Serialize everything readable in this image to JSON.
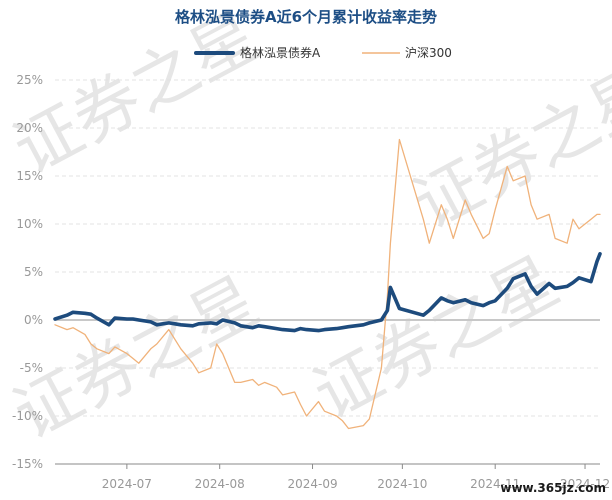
{
  "title": "格林泓景债券A近6个月累计收益率走势",
  "watermark_text": "证券之星",
  "site_label": "www.365jz.com",
  "colors": {
    "fund": "#1d4b7d",
    "index": "#f0b27a",
    "grid": "#e3e3e3",
    "zero": "#c8c8c8",
    "axis": "#8a8a8a"
  },
  "chart_data": {
    "type": "line",
    "title": "格林泓景债券A近6个月累计收益率走势",
    "xlabel": "",
    "ylabel": "",
    "y_unit": "%",
    "ylim": [
      -15,
      25
    ],
    "ytick_values": [
      -15,
      -10,
      -5,
      0,
      5,
      10,
      15,
      20,
      25
    ],
    "ytick_labels": [
      "-15%",
      "-10%",
      "-5%",
      "0%",
      "5%",
      "10%",
      "15%",
      "20%",
      "25%"
    ],
    "xtick_labels": [
      "2024-07",
      "2024-08",
      "2024-09",
      "2024-10",
      "2024-11",
      "2024-12"
    ],
    "xtick_dates": [
      "2024-07-01",
      "2024-08-01",
      "2024-09-01",
      "2024-10-01",
      "2024-11-01",
      "2024-12-01"
    ],
    "grid": "horizontal",
    "legend": "top-center",
    "series": [
      {
        "name": "格林泓景债券A",
        "x": [
          "2024-06-07",
          "2024-06-11",
          "2024-06-13",
          "2024-06-17",
          "2024-06-19",
          "2024-06-21",
          "2024-06-25",
          "2024-06-27",
          "2024-07-01",
          "2024-07-03",
          "2024-07-05",
          "2024-07-09",
          "2024-07-11",
          "2024-07-15",
          "2024-07-17",
          "2024-07-19",
          "2024-07-23",
          "2024-07-25",
          "2024-07-29",
          "2024-07-31",
          "2024-08-02",
          "2024-08-06",
          "2024-08-08",
          "2024-08-12",
          "2024-08-14",
          "2024-08-16",
          "2024-08-20",
          "2024-08-22",
          "2024-08-26",
          "2024-08-28",
          "2024-08-30",
          "2024-09-03",
          "2024-09-05",
          "2024-09-09",
          "2024-09-11",
          "2024-09-13",
          "2024-09-18",
          "2024-09-20",
          "2024-09-24",
          "2024-09-26",
          "2024-09-27",
          "2024-09-30",
          "2024-10-08",
          "2024-10-10",
          "2024-10-14",
          "2024-10-16",
          "2024-10-18",
          "2024-10-22",
          "2024-10-24",
          "2024-10-28",
          "2024-10-30",
          "2024-11-01",
          "2024-11-05",
          "2024-11-07",
          "2024-11-11",
          "2024-11-13",
          "2024-11-15",
          "2024-11-19",
          "2024-11-21",
          "2024-11-25",
          "2024-11-27",
          "2024-11-29",
          "2024-12-03",
          "2024-12-05",
          "2024-12-06"
        ],
        "values": [
          0.1,
          0.5,
          0.8,
          0.7,
          0.6,
          0.2,
          -0.5,
          0.2,
          0.1,
          0.1,
          0.0,
          -0.2,
          -0.5,
          -0.3,
          -0.4,
          -0.5,
          -0.6,
          -0.4,
          -0.3,
          -0.4,
          0.0,
          -0.3,
          -0.6,
          -0.8,
          -0.6,
          -0.7,
          -0.9,
          -1.0,
          -1.1,
          -0.9,
          -1.0,
          -1.1,
          -1.0,
          -0.9,
          -0.8,
          -0.7,
          -0.5,
          -0.3,
          0.0,
          1.0,
          3.4,
          1.2,
          0.5,
          1.0,
          2.3,
          2.0,
          1.8,
          2.1,
          1.8,
          1.5,
          1.8,
          2.0,
          3.3,
          4.3,
          4.8,
          3.5,
          2.7,
          3.8,
          3.3,
          3.5,
          3.9,
          4.4,
          4.0,
          6.1,
          6.9
        ]
      },
      {
        "name": "沪深300",
        "x": [
          "2024-06-07",
          "2024-06-11",
          "2024-06-13",
          "2024-06-17",
          "2024-06-19",
          "2024-06-21",
          "2024-06-25",
          "2024-06-27",
          "2024-07-01",
          "2024-07-03",
          "2024-07-05",
          "2024-07-09",
          "2024-07-11",
          "2024-07-15",
          "2024-07-17",
          "2024-07-19",
          "2024-07-23",
          "2024-07-25",
          "2024-07-29",
          "2024-07-31",
          "2024-08-02",
          "2024-08-06",
          "2024-08-08",
          "2024-08-12",
          "2024-08-14",
          "2024-08-16",
          "2024-08-20",
          "2024-08-22",
          "2024-08-26",
          "2024-08-28",
          "2024-08-30",
          "2024-09-03",
          "2024-09-05",
          "2024-09-09",
          "2024-09-11",
          "2024-09-13",
          "2024-09-18",
          "2024-09-20",
          "2024-09-24",
          "2024-09-26",
          "2024-09-27",
          "2024-09-30",
          "2024-10-08",
          "2024-10-10",
          "2024-10-14",
          "2024-10-16",
          "2024-10-18",
          "2024-10-22",
          "2024-10-24",
          "2024-10-28",
          "2024-10-30",
          "2024-11-01",
          "2024-11-05",
          "2024-11-07",
          "2024-11-11",
          "2024-11-13",
          "2024-11-15",
          "2024-11-19",
          "2024-11-21",
          "2024-11-25",
          "2024-11-27",
          "2024-11-29",
          "2024-12-03",
          "2024-12-05",
          "2024-12-06"
        ],
        "values": [
          -0.5,
          -1.0,
          -0.8,
          -1.5,
          -2.5,
          -3.0,
          -3.5,
          -2.8,
          -3.5,
          -4.0,
          -4.5,
          -3.0,
          -2.5,
          -1.0,
          -2.0,
          -3.0,
          -4.5,
          -5.5,
          -5.0,
          -2.5,
          -3.5,
          -6.5,
          -6.5,
          -6.2,
          -6.8,
          -6.5,
          -7.0,
          -7.8,
          -7.5,
          -8.8,
          -10.0,
          -8.5,
          -9.5,
          -10.0,
          -10.5,
          -11.3,
          -11.0,
          -10.3,
          -5.0,
          2.5,
          8.0,
          18.8,
          10.5,
          8.0,
          12.0,
          10.5,
          8.5,
          12.5,
          11.0,
          8.5,
          9.0,
          11.5,
          16.0,
          14.5,
          15.0,
          12.0,
          10.5,
          11.0,
          8.5,
          8.0,
          10.5,
          9.5,
          10.5,
          11.0,
          11.0
        ]
      }
    ]
  }
}
